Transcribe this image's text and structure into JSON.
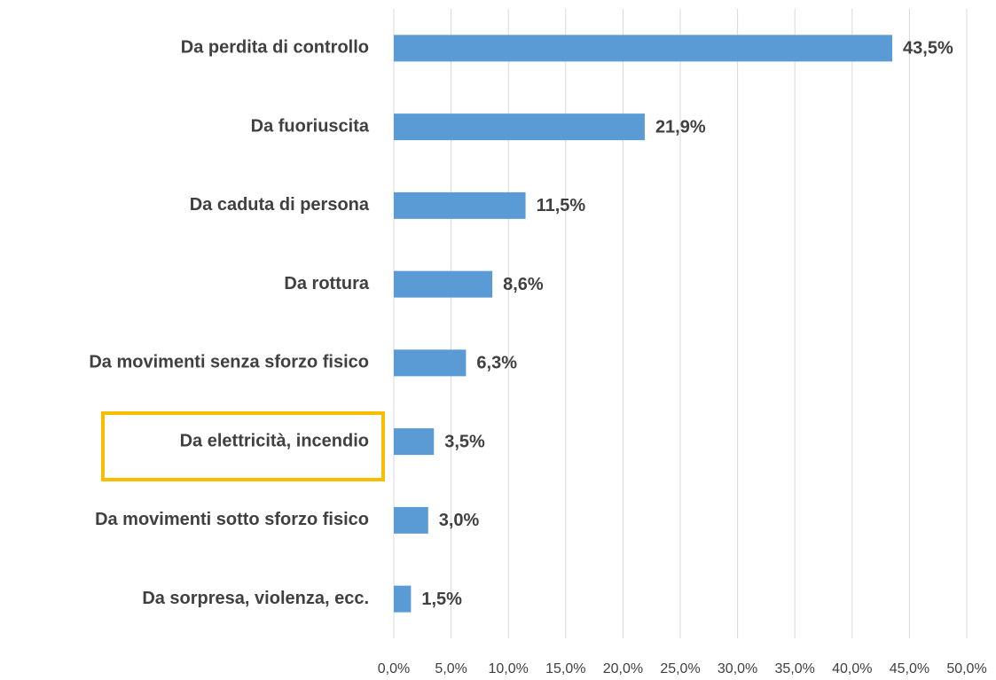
{
  "chart_data": {
    "type": "bar",
    "orientation": "horizontal",
    "categories": [
      "Da perdita di controllo",
      "Da fuoriuscita",
      "Da caduta di persona",
      "Da rottura",
      "Da movimenti senza sforzo fisico",
      "Da elettricità, incendio",
      "Da movimenti sotto sforzo fisico",
      "Da sorpresa, violenza, ecc."
    ],
    "values": [
      43.5,
      21.9,
      11.5,
      8.6,
      6.3,
      3.5,
      3.0,
      1.5
    ],
    "value_labels": [
      "43,5%",
      "21,9%",
      "11,5%",
      "8,6%",
      "6,3%",
      "3,5%",
      "3,0%",
      "1,5%"
    ],
    "color": "#5b9bd5",
    "xlim": [
      0,
      50
    ],
    "xticks": [
      {
        "value": 0,
        "label": "0,0%"
      },
      {
        "value": 5,
        "label": "5,0%"
      },
      {
        "value": 10,
        "label": "10,0%"
      },
      {
        "value": 15,
        "label": "15,0%"
      },
      {
        "value": 20,
        "label": "20,0%"
      },
      {
        "value": 25,
        "label": "25,0%"
      },
      {
        "value": 30,
        "label": "30,0%"
      },
      {
        "value": 35,
        "label": "35,0%"
      },
      {
        "value": 40,
        "label": "40,0%"
      },
      {
        "value": 45,
        "label": "45,0%"
      },
      {
        "value": 50,
        "label": "50,0%"
      }
    ],
    "grid": true
  }
}
